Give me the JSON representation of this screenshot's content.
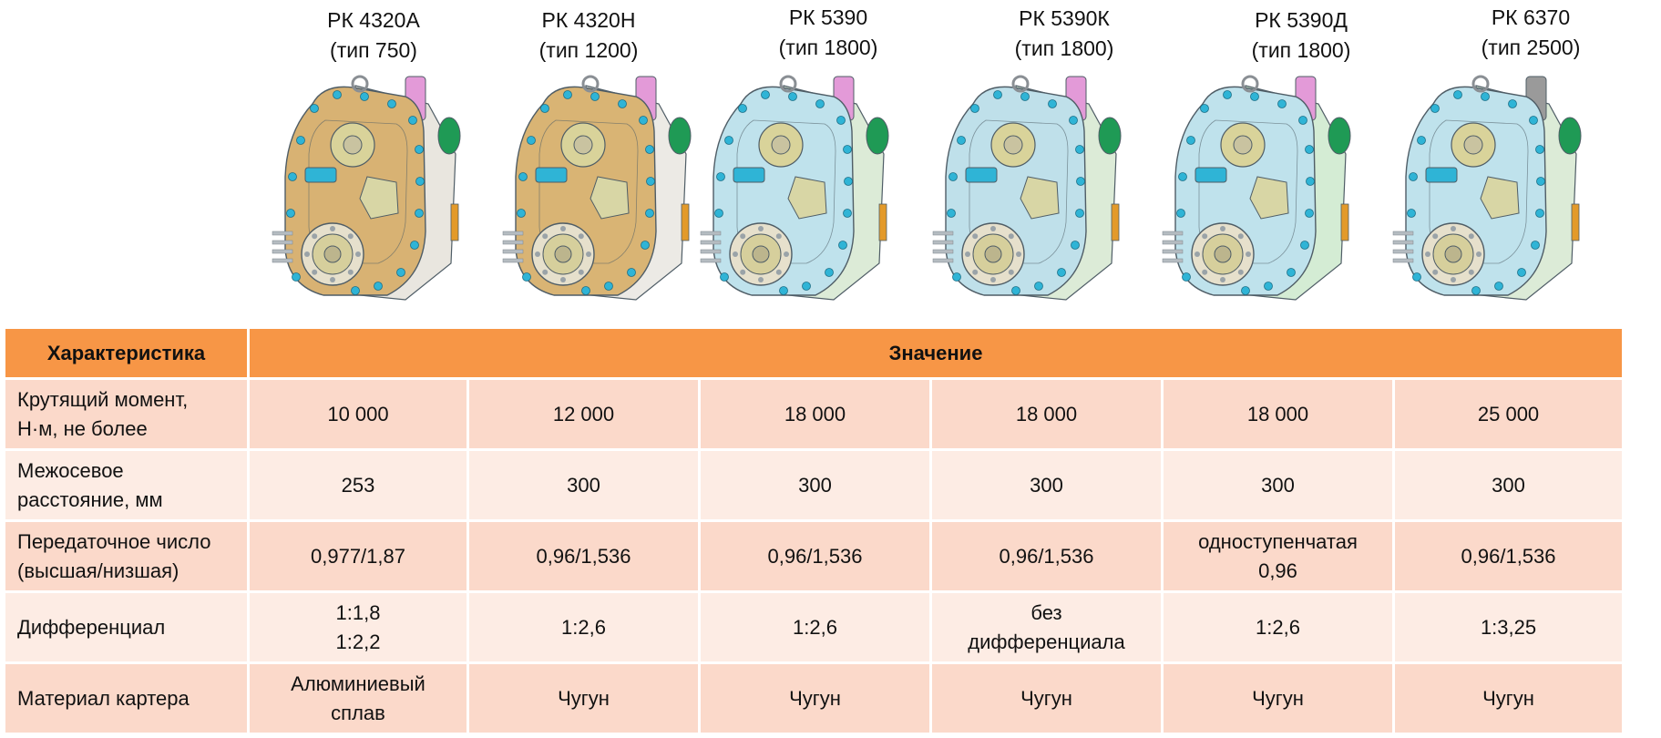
{
  "models": [
    {
      "name": "РК 4320А",
      "type": "(тип 750)",
      "colors": {
        "body": "#d8b273",
        "cover": "#e9e6df",
        "bolt": "#2fb4d6",
        "accent": "#e39ad8"
      }
    },
    {
      "name": "РК 4320Н",
      "type": "(тип 1200)",
      "colors": {
        "body": "#d9b474",
        "cover": "#eceae5",
        "bolt": "#2fb4d6",
        "accent": "#e39ad8"
      }
    },
    {
      "name": "РК 5390",
      "type": "(тип 1800)",
      "colors": {
        "body": "#bfe2ec",
        "cover": "#dcebd7",
        "bolt": "#2fb4d6",
        "accent": "#e39ad8"
      }
    },
    {
      "name": "РК 5390К",
      "type": "(тип 1800)",
      "colors": {
        "body": "#bfe0ea",
        "cover": "#dcebd7",
        "bolt": "#2fb4d6",
        "accent": "#e39ad8"
      }
    },
    {
      "name": "РК 5390Д",
      "type": "(тип 1800)",
      "colors": {
        "body": "#bfe2ec",
        "cover": "#d4ecd4",
        "bolt": "#2fb4d6",
        "accent": "#e39ad8"
      }
    },
    {
      "name": "РК 6370",
      "type": "(тип 2500)",
      "colors": {
        "body": "#bfe2ec",
        "cover": "#dcebd7",
        "bolt": "#2fb4d6",
        "accent": "#9a9a9a"
      }
    }
  ],
  "table": {
    "header": {
      "characteristic": "Характеристика",
      "value": "Значение"
    },
    "rows": [
      {
        "label": [
          "Крутящий момент,",
          "Н·м, не более"
        ],
        "values": [
          [
            "10 000"
          ],
          [
            "12 000"
          ],
          [
            "18 000"
          ],
          [
            "18 000"
          ],
          [
            "18 000"
          ],
          [
            "25 000"
          ]
        ]
      },
      {
        "label": [
          "Межосевое",
          "расстояние, мм"
        ],
        "values": [
          [
            "253"
          ],
          [
            "300"
          ],
          [
            "300"
          ],
          [
            "300"
          ],
          [
            "300"
          ],
          [
            "300"
          ]
        ]
      },
      {
        "label": [
          "Передаточное число",
          "(высшая/низшая)"
        ],
        "values": [
          [
            "0,977/1,87"
          ],
          [
            "0,96/1,536"
          ],
          [
            "0,96/1,536"
          ],
          [
            "0,96/1,536"
          ],
          [
            "одноступенчатая",
            "0,96"
          ],
          [
            "0,96/1,536"
          ]
        ]
      },
      {
        "label": [
          "Дифференциал"
        ],
        "values": [
          [
            "1:1,8",
            "1:2,2"
          ],
          [
            "1:2,6"
          ],
          [
            "1:2,6"
          ],
          [
            "без",
            "дифференциала"
          ],
          [
            "1:2,6"
          ],
          [
            "1:3,25"
          ]
        ]
      },
      {
        "label": [
          "Материал картера"
        ],
        "values": [
          [
            "Алюминиевый",
            "сплав"
          ],
          [
            "Чугун"
          ],
          [
            "Чугун"
          ],
          [
            "Чугун"
          ],
          [
            "Чугун"
          ],
          [
            "Чугун"
          ]
        ]
      }
    ]
  }
}
